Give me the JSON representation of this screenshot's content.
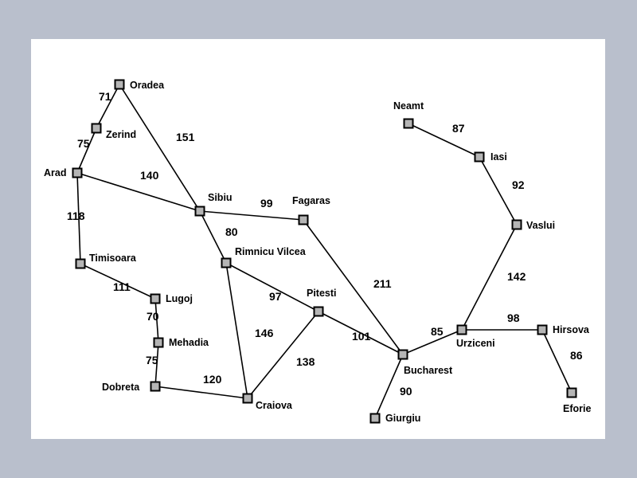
{
  "map": {
    "cities": [
      {
        "id": "oradea",
        "name": "Oradea"
      },
      {
        "id": "zerind",
        "name": "Zerind"
      },
      {
        "id": "arad",
        "name": "Arad"
      },
      {
        "id": "sibiu",
        "name": "Sibiu"
      },
      {
        "id": "fagaras",
        "name": "Fagaras"
      },
      {
        "id": "timisoara",
        "name": "Timisoara"
      },
      {
        "id": "rimnicu-vilcea",
        "name": "Rimnicu Vilcea"
      },
      {
        "id": "lugoj",
        "name": "Lugoj"
      },
      {
        "id": "pitesti",
        "name": "Pitesti"
      },
      {
        "id": "mehadia",
        "name": "Mehadia"
      },
      {
        "id": "dobreta",
        "name": "Dobreta"
      },
      {
        "id": "craiova",
        "name": "Craiova"
      },
      {
        "id": "bucharest",
        "name": "Bucharest"
      },
      {
        "id": "giurgiu",
        "name": "Giurgiu"
      },
      {
        "id": "urziceni",
        "name": "Urziceni"
      },
      {
        "id": "hirsova",
        "name": "Hirsova"
      },
      {
        "id": "eforie",
        "name": "Eforie"
      },
      {
        "id": "vaslui",
        "name": "Vaslui"
      },
      {
        "id": "iasi",
        "name": "Iasi"
      },
      {
        "id": "neamt",
        "name": "Neamt"
      }
    ],
    "roads": [
      {
        "from": "oradea",
        "to": "zerind",
        "distance": "71"
      },
      {
        "from": "zerind",
        "to": "arad",
        "distance": "75"
      },
      {
        "from": "oradea",
        "to": "sibiu",
        "distance": "151"
      },
      {
        "from": "arad",
        "to": "sibiu",
        "distance": "140"
      },
      {
        "from": "arad",
        "to": "timisoara",
        "distance": "118"
      },
      {
        "from": "sibiu",
        "to": "fagaras",
        "distance": "99"
      },
      {
        "from": "sibiu",
        "to": "rimnicu-vilcea",
        "distance": "80"
      },
      {
        "from": "timisoara",
        "to": "lugoj",
        "distance": "111"
      },
      {
        "from": "lugoj",
        "to": "mehadia",
        "distance": "70"
      },
      {
        "from": "mehadia",
        "to": "dobreta",
        "distance": "75"
      },
      {
        "from": "dobreta",
        "to": "craiova",
        "distance": "120"
      },
      {
        "from": "rimnicu-vilcea",
        "to": "craiova",
        "distance": "146"
      },
      {
        "from": "rimnicu-vilcea",
        "to": "pitesti",
        "distance": "97"
      },
      {
        "from": "craiova",
        "to": "pitesti",
        "distance": "138"
      },
      {
        "from": "pitesti",
        "to": "bucharest",
        "distance": "101"
      },
      {
        "from": "fagaras",
        "to": "bucharest",
        "distance": "211"
      },
      {
        "from": "bucharest",
        "to": "giurgiu",
        "distance": "90"
      },
      {
        "from": "bucharest",
        "to": "urziceni",
        "distance": "85"
      },
      {
        "from": "urziceni",
        "to": "hirsova",
        "distance": "98"
      },
      {
        "from": "hirsova",
        "to": "eforie",
        "distance": "86"
      },
      {
        "from": "urziceni",
        "to": "vaslui",
        "distance": "142"
      },
      {
        "from": "vaslui",
        "to": "iasi",
        "distance": "92"
      },
      {
        "from": "iasi",
        "to": "neamt",
        "distance": "87"
      }
    ]
  }
}
